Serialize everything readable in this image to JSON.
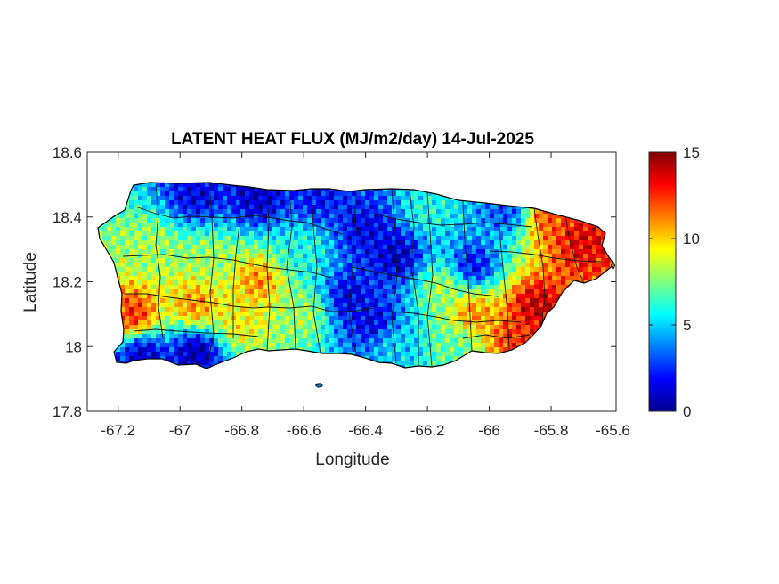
{
  "chart_data": {
    "type": "heatmap",
    "title": "LATENT HEAT FLUX (MJ/m2/day) 14-Jul-2025",
    "xlabel": "Longitude",
    "ylabel": "Latitude",
    "xlim": [
      -67.3,
      -65.59
    ],
    "ylim": [
      17.8,
      18.6
    ],
    "xticks": [
      -67.2,
      -67,
      -66.8,
      -66.6,
      -66.4,
      -66.2,
      -66,
      -65.8,
      -65.6
    ],
    "xtick_labels": [
      "-67.2",
      "-67",
      "-66.8",
      "-66.6",
      "-66.4",
      "-66.2",
      "-66",
      "-65.8",
      "-65.6"
    ],
    "yticks": [
      17.8,
      18,
      18.2,
      18.4,
      18.6
    ],
    "ytick_labels": [
      "17.8",
      "18",
      "18.2",
      "18.4",
      "18.6"
    ],
    "colorbar": {
      "colormap": "jet",
      "range": [
        0,
        15
      ],
      "ticks": [
        0,
        5,
        10,
        15
      ],
      "tick_labels": [
        "0",
        "5",
        "10",
        "15"
      ]
    },
    "grid": false,
    "regions": [
      {
        "lon": -66.95,
        "lat": 18.47,
        "value": 1.5
      },
      {
        "lon": -66.75,
        "lat": 18.46,
        "value": 1.0
      },
      {
        "lon": -66.55,
        "lat": 18.46,
        "value": 2.0
      },
      {
        "lon": -66.4,
        "lat": 18.36,
        "value": 1.5
      },
      {
        "lon": -66.3,
        "lat": 18.28,
        "value": 1.0
      },
      {
        "lon": -66.45,
        "lat": 18.15,
        "value": 1.5
      },
      {
        "lon": -66.38,
        "lat": 18.08,
        "value": 1.5
      },
      {
        "lon": -66.05,
        "lat": 18.25,
        "value": 2.0
      },
      {
        "lon": -65.95,
        "lat": 18.42,
        "value": 3.0
      },
      {
        "lon": -66.2,
        "lat": 18.42,
        "value": 6.0
      },
      {
        "lon": -67.12,
        "lat": 17.97,
        "value": 1.0
      },
      {
        "lon": -66.95,
        "lat": 17.98,
        "value": 0.5
      },
      {
        "lon": -67.1,
        "lat": 18.3,
        "value": 8.0
      },
      {
        "lon": -66.9,
        "lat": 18.26,
        "value": 8.0
      },
      {
        "lon": -66.75,
        "lat": 18.2,
        "value": 11.0
      },
      {
        "lon": -67.15,
        "lat": 18.1,
        "value": 12.5
      },
      {
        "lon": -66.95,
        "lat": 18.13,
        "value": 11.0
      },
      {
        "lon": -66.8,
        "lat": 18.08,
        "value": 9.5
      },
      {
        "lon": -66.6,
        "lat": 18.1,
        "value": 8.0
      },
      {
        "lon": -66.6,
        "lat": 18.3,
        "value": 6.0
      },
      {
        "lon": -66.15,
        "lat": 18.18,
        "value": 8.0
      },
      {
        "lon": -66.05,
        "lat": 18.1,
        "value": 11.0
      },
      {
        "lon": -65.85,
        "lat": 18.12,
        "value": 14.0
      },
      {
        "lon": -65.92,
        "lat": 18.02,
        "value": 12.5
      },
      {
        "lon": -65.7,
        "lat": 18.33,
        "value": 13.5
      },
      {
        "lon": -65.8,
        "lat": 18.4,
        "value": 12.0
      },
      {
        "lon": -66.1,
        "lat": 18.0,
        "value": 7.0
      },
      {
        "lon": -66.3,
        "lat": 18.0,
        "value": 5.0
      }
    ],
    "islands": [
      {
        "lon": -66.55,
        "lat": 17.88,
        "value": 4.0
      },
      {
        "lon": -65.6,
        "lat": 18.25,
        "value": 11.0
      }
    ]
  }
}
